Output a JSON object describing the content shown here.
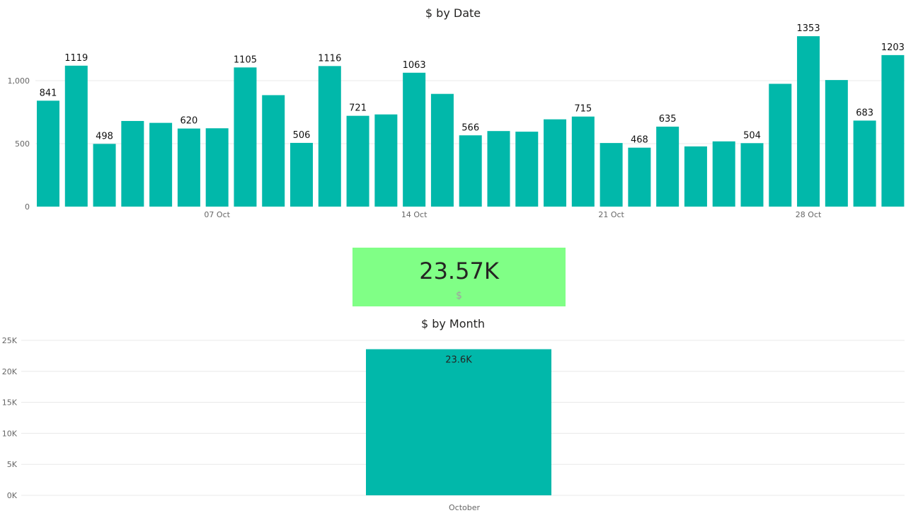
{
  "colors": {
    "bar": "#01b8aa",
    "card": "#80ff86",
    "grid": "#e8e8e8"
  },
  "daily": {
    "title": "$ by Date",
    "y_ticks": [
      "0",
      "500",
      "1,000"
    ],
    "x_ticks": [
      "07 Oct",
      "14 Oct",
      "21 Oct",
      "28 Oct"
    ]
  },
  "card": {
    "value": "23.57K",
    "label": "$"
  },
  "monthly": {
    "title": "$ by Month",
    "y_ticks": [
      "0K",
      "5K",
      "10K",
      "15K",
      "20K",
      "25K"
    ],
    "category": "October",
    "data_label": "23.6K"
  },
  "chart_data": [
    {
      "type": "bar",
      "title": "$ by Date",
      "xlabel": "",
      "ylabel": "",
      "categories": [
        "01 Oct",
        "02 Oct",
        "03 Oct",
        "04 Oct",
        "05 Oct",
        "06 Oct",
        "07 Oct",
        "08 Oct",
        "09 Oct",
        "10 Oct",
        "11 Oct",
        "12 Oct",
        "13 Oct",
        "14 Oct",
        "15 Oct",
        "16 Oct",
        "17 Oct",
        "18 Oct",
        "19 Oct",
        "20 Oct",
        "21 Oct",
        "22 Oct",
        "23 Oct",
        "24 Oct",
        "25 Oct",
        "26 Oct",
        "27 Oct",
        "28 Oct",
        "29 Oct",
        "30 Oct",
        "31 Oct"
      ],
      "values": [
        841,
        1119,
        498,
        680,
        665,
        620,
        622,
        1105,
        885,
        506,
        1116,
        721,
        732,
        1063,
        895,
        566,
        600,
        595,
        693,
        715,
        505,
        468,
        635,
        478,
        518,
        504,
        975,
        1353,
        1005,
        683,
        1203
      ],
      "labels": [
        "841",
        "1119",
        "498",
        "",
        "",
        "620",
        "",
        "1105",
        "",
        "506",
        "1116",
        "721",
        "",
        "1063",
        "",
        "566",
        "",
        "",
        "",
        "715",
        "",
        "468",
        "635",
        "",
        "",
        "504",
        "",
        "1353",
        "",
        "683",
        "1203"
      ],
      "ylim": [
        0,
        1400
      ],
      "grid": true
    },
    {
      "type": "bar",
      "title": "$ by Month",
      "xlabel": "",
      "ylabel": "",
      "categories": [
        "October"
      ],
      "values": [
        23570
      ],
      "ylim": [
        0,
        25000
      ],
      "grid": true
    }
  ]
}
